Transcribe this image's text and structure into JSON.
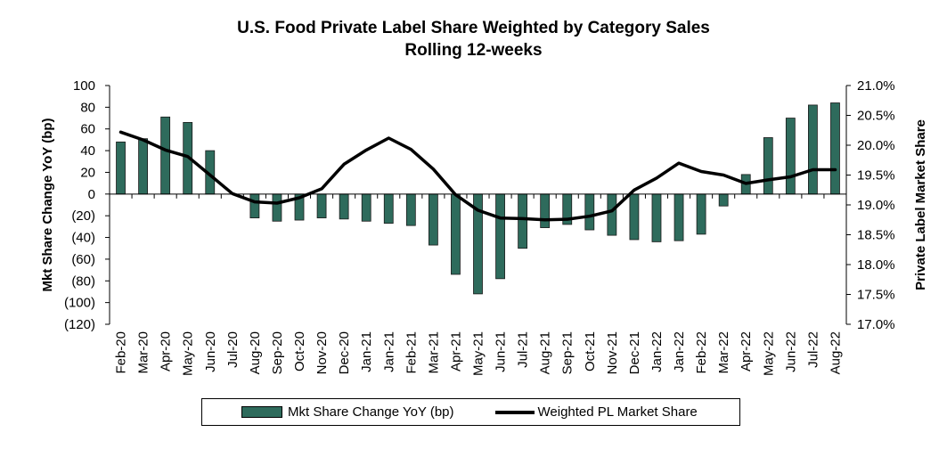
{
  "chart_data": {
    "type": "bar+line",
    "title": "U.S. Food Private Label Share Weighted by Category Sales",
    "subtitle": "Rolling 12-weeks",
    "categories": [
      "Feb-20",
      "Mar-20",
      "Apr-20",
      "May-20",
      "Jun-20",
      "Jul-20",
      "Aug-20",
      "Sep-20",
      "Oct-20",
      "Nov-20",
      "Dec-20",
      "Jan-21",
      "Jan-21",
      "Feb-21",
      "Mar-21",
      "Apr-21",
      "May-21",
      "Jun-21",
      "Jul-21",
      "Aug-21",
      "Sep-21",
      "Oct-21",
      "Nov-21",
      "Dec-21",
      "Jan-22",
      "Jan-22",
      "Feb-22",
      "Mar-22",
      "Apr-22",
      "May-22",
      "Jun-22",
      "Jul-22",
      "Aug-22"
    ],
    "series": [
      {
        "name": "Mkt Share Change YoY (bp)",
        "type": "bar",
        "axis": "left",
        "values": [
          48,
          51,
          71,
          66,
          40,
          0,
          -22,
          -25,
          -24,
          -22,
          -23,
          -25,
          -27,
          -29,
          -47,
          -74,
          -92,
          -78,
          -50,
          -31,
          -28,
          -33,
          -38,
          -42,
          -44,
          -43,
          -37,
          -11,
          18,
          52,
          70,
          82,
          84
        ]
      },
      {
        "name": "Weighted PL Market Share",
        "type": "line",
        "axis": "right",
        "values": [
          20.22,
          20.09,
          19.92,
          19.81,
          19.5,
          19.19,
          19.05,
          19.03,
          19.12,
          19.27,
          19.68,
          19.92,
          20.12,
          19.93,
          19.6,
          19.17,
          18.91,
          18.78,
          18.77,
          18.75,
          18.76,
          18.81,
          18.9,
          19.25,
          19.45,
          19.7,
          19.56,
          19.5,
          19.36,
          19.42,
          19.47,
          19.59,
          19.59
        ]
      }
    ],
    "y_left": {
      "label": "Mkt Share Change YoY (bp)",
      "range": [
        -120,
        100
      ],
      "ticks": [
        100,
        80,
        60,
        40,
        20,
        0,
        -20,
        -40,
        -60,
        -80,
        -100,
        -120
      ],
      "tick_labels": [
        "100",
        "80",
        "60",
        "40",
        "20",
        "0",
        "(20)",
        "(40)",
        "(60)",
        "(80)",
        "(100)",
        "(120)"
      ]
    },
    "y_right": {
      "label": "Private Label Market Share",
      "range": [
        17.0,
        21.0
      ],
      "ticks": [
        21.0,
        20.5,
        20.0,
        19.5,
        19.0,
        18.5,
        18.0,
        17.5,
        17.0
      ],
      "tick_labels": [
        "21.0%",
        "20.5%",
        "20.0%",
        "19.5%",
        "19.0%",
        "18.5%",
        "18.0%",
        "17.5%",
        "17.0%"
      ]
    },
    "legend": [
      "Mkt Share Change YoY (bp)",
      "Weighted PL Market Share"
    ],
    "legend_position": "bottom",
    "colors": {
      "bar": "#2e6b5c",
      "bar_border": "#1a1a1a",
      "line": "#000000"
    }
  }
}
